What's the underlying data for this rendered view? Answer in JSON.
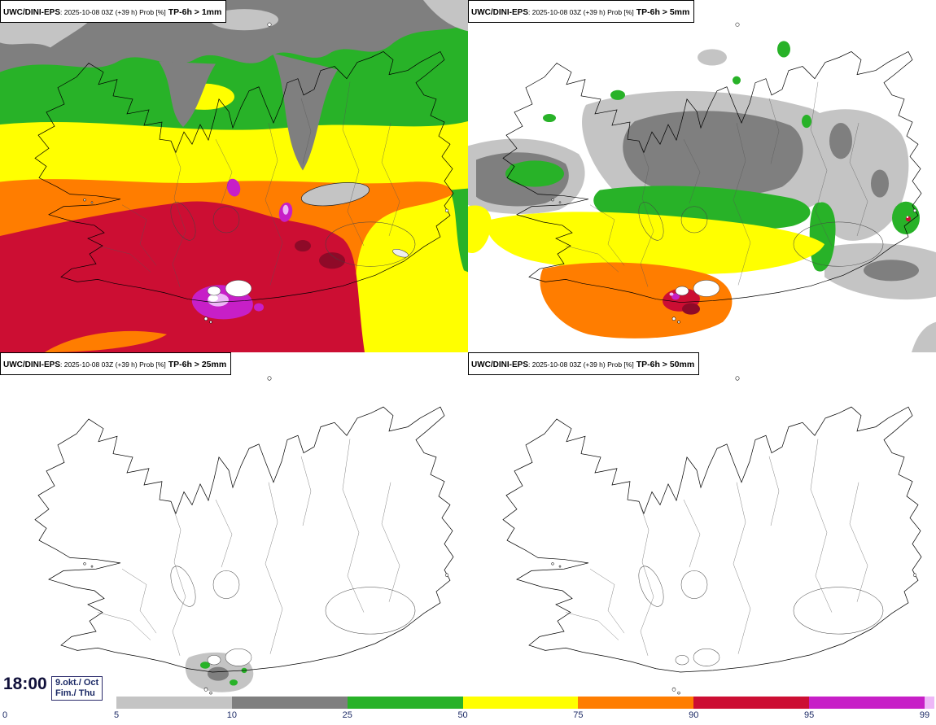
{
  "panels": [
    {
      "model": "UWC/DINI-EPS",
      "run": ": 2025-10-08 03Z (+39 h) Prob [%]",
      "threshold": "TP-6h > 1mm"
    },
    {
      "model": "UWC/DINI-EPS",
      "run": ": 2025-10-08 03Z (+39 h) Prob [%]",
      "threshold": "TP-6h > 5mm"
    },
    {
      "model": "UWC/DINI-EPS",
      "run": ": 2025-10-08 03Z (+39 h) Prob [%]",
      "threshold": "TP-6h > 25mm"
    },
    {
      "model": "UWC/DINI-EPS",
      "run": ": 2025-10-08 03Z (+39 h) Prob [%]",
      "threshold": "TP-6h > 50mm"
    }
  ],
  "footer": {
    "time": "18:00",
    "date_top": "9.okt./ Oct",
    "date_bottom": "Fim./ Thu"
  },
  "legend": {
    "zero_label": "0",
    "segments": [
      {
        "label": "5",
        "color": "#c4c4c4"
      },
      {
        "label": "10",
        "color": "#7f7f7f"
      },
      {
        "label": "25",
        "color": "#28b228"
      },
      {
        "label": "50",
        "color": "#ffff00"
      },
      {
        "label": "75",
        "color": "#ff7d00"
      },
      {
        "label": "90",
        "color": "#cc0e33"
      },
      {
        "label": "95",
        "color": "#c71fc7"
      },
      {
        "label": "99",
        "color": "#edb7f7"
      }
    ]
  },
  "palette": {
    "gray_light": "#c4c4c4",
    "gray_dark": "#7f7f7f",
    "green": "#28b228",
    "yellow": "#ffff00",
    "orange": "#ff7d00",
    "red": "#cc0e33",
    "dark_red": "#8e0a28",
    "magenta": "#c71fc7",
    "violet": "#edb7f7"
  }
}
